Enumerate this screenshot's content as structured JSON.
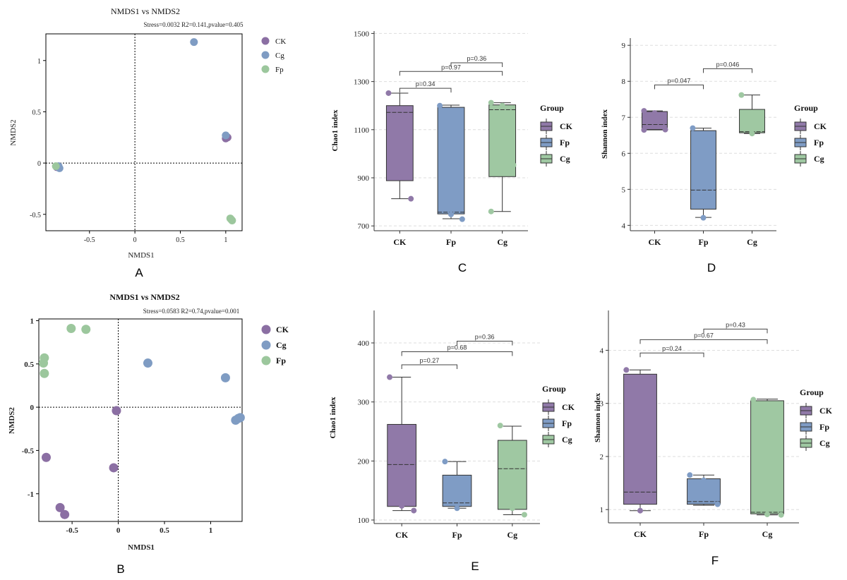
{
  "colors": {
    "CK": "#8b6fa3",
    "Cg": "#7f9cc3",
    "Fp": "#9cc79d",
    "CKbox": "#9079a8",
    "Fpbox": "#7f9cc5",
    "Cgbox": "#9fc8a2"
  },
  "chart_data": [
    {
      "type": "scatter",
      "panel": "A",
      "title": "NMDS1 vs NMDS2",
      "bold": false,
      "subtitle": "Stress=0.0032  R2=0.141,pvalue=0.405",
      "xlabel": "NMDS1",
      "ylabel": "NMDS2",
      "xlim": [
        -0.98,
        1.18
      ],
      "ylim": [
        -0.66,
        1.26
      ],
      "xticks": [
        -0.5,
        0,
        0.5,
        1
      ],
      "xticklabels": [
        "-0.5",
        "0",
        "0.5",
        "1"
      ],
      "yticks": [
        -0.5,
        0,
        0.5,
        1
      ],
      "yticklabels": [
        "-0.5",
        "0",
        "0.5",
        "1"
      ],
      "legend": [
        "CK",
        "Cg",
        "Fp"
      ],
      "series": [
        {
          "name": "CK",
          "points": [
            [
              1.0,
              0.24
            ],
            [
              1.02,
              0.25
            ],
            [
              -0.86,
              -0.04
            ],
            [
              -0.85,
              -0.035
            ]
          ]
        },
        {
          "name": "Cg",
          "points": [
            [
              0.65,
              1.18
            ],
            [
              1.0,
              0.27
            ],
            [
              -0.84,
              -0.03
            ],
            [
              -0.83,
              -0.05
            ]
          ]
        },
        {
          "name": "Fp",
          "points": [
            [
              1.05,
              -0.54
            ],
            [
              1.06,
              -0.55
            ],
            [
              1.07,
              -0.56
            ],
            [
              -0.87,
              -0.03
            ]
          ]
        }
      ]
    },
    {
      "type": "box",
      "panel": "C",
      "ylabel": "Chao1 index",
      "ylim": [
        680,
        1510
      ],
      "yticks": [
        700,
        900,
        1100,
        1300,
        1500
      ],
      "yticklabels": [
        "700",
        "900",
        "1100",
        "1300",
        "1500"
      ],
      "categories": [
        "CK",
        "Fp",
        "Cg"
      ],
      "legend_title": "Group",
      "legend": [
        "CK",
        "Fp",
        "Cg"
      ],
      "boxes": [
        {
          "name": "CK",
          "min": 813,
          "q1": 888,
          "median": 1172,
          "q3": 1200,
          "max": 1252,
          "points": [
            1252,
            905,
            813
          ]
        },
        {
          "name": "Fp",
          "min": 730,
          "q1": 750,
          "median": 757,
          "q3": 1193,
          "max": 1202,
          "points": [
            1200,
            748,
            728
          ]
        },
        {
          "name": "Cg",
          "min": 760,
          "q1": 905,
          "median": 1183,
          "q3": 1203,
          "max": 1212,
          "points": [
            1212,
            1200,
            953,
            760
          ]
        }
      ],
      "brackets": [
        {
          "label": "p=0.36",
          "from": 1,
          "to": 2,
          "y": 1378
        },
        {
          "label": "p=0.97",
          "from": 0,
          "to": 2,
          "y": 1342
        },
        {
          "label": "p=0.34",
          "from": 0,
          "to": 1,
          "y": 1272
        }
      ]
    },
    {
      "type": "box",
      "panel": "D",
      "ylabel": "Shannon index",
      "ylim": [
        3.85,
        9.2
      ],
      "yticks": [
        4,
        5,
        6,
        7,
        8,
        9
      ],
      "yticklabels": [
        "4",
        "5",
        "6",
        "7",
        "8",
        "9"
      ],
      "categories": [
        "CK",
        "Fp",
        "Cg"
      ],
      "legend_title": "Group",
      "legend": [
        "CK",
        "Fp",
        "Cg"
      ],
      "boxes": [
        {
          "name": "CK",
          "min": 6.65,
          "q1": 6.66,
          "median": 6.8,
          "q3": 7.16,
          "max": 7.18,
          "points": [
            7.18,
            7.12,
            6.66,
            6.65
          ]
        },
        {
          "name": "Fp",
          "min": 4.22,
          "q1": 4.45,
          "median": 4.98,
          "q3": 6.63,
          "max": 6.7,
          "points": [
            6.7,
            4.21
          ]
        },
        {
          "name": "Cg",
          "min": 6.55,
          "q1": 6.57,
          "median": 6.6,
          "q3": 7.22,
          "max": 7.62,
          "points": [
            7.62,
            6.55
          ]
        }
      ],
      "brackets": [
        {
          "label": "p=0.046",
          "from": 1,
          "to": 2,
          "y": 8.35
        },
        {
          "label": "p=0.047",
          "from": 0,
          "to": 1,
          "y": 7.9
        }
      ]
    },
    {
      "type": "scatter",
      "panel": "B",
      "title": "NMDS1 vs NMDS2",
      "bold": true,
      "subtitle": "Stress=0.0583    R2=0.74,pvalue=0.001",
      "xlabel": "NMDS1",
      "ylabel": "NMDS2",
      "xlim": [
        -0.86,
        1.34
      ],
      "ylim": [
        -1.32,
        1.02
      ],
      "xticks": [
        -0.5,
        0,
        0.5,
        1
      ],
      "xticklabels": [
        "-0.5",
        "0",
        "0.5",
        "1"
      ],
      "yticks": [
        -1,
        -0.5,
        0,
        0.5,
        1
      ],
      "yticklabels": [
        "-1",
        "-0.5",
        "0",
        "0.5",
        "1"
      ],
      "legend": [
        "CK",
        "Cg",
        "Fp"
      ],
      "series": [
        {
          "name": "CK",
          "points": [
            [
              -0.02,
              -0.04
            ],
            [
              -0.78,
              -0.58
            ],
            [
              -0.05,
              -0.7
            ],
            [
              -0.63,
              -1.16
            ],
            [
              -0.58,
              -1.24
            ]
          ]
        },
        {
          "name": "Cg",
          "points": [
            [
              0.32,
              0.51
            ],
            [
              1.16,
              0.34
            ],
            [
              1.27,
              -0.15
            ],
            [
              1.3,
              -0.13
            ],
            [
              1.32,
              -0.12
            ]
          ]
        },
        {
          "name": "Fp",
          "points": [
            [
              -0.51,
              0.91
            ],
            [
              -0.35,
              0.9
            ],
            [
              -0.8,
              0.57
            ],
            [
              -0.81,
              0.51
            ],
            [
              -0.8,
              0.39
            ]
          ]
        }
      ]
    },
    {
      "type": "box",
      "panel": "E",
      "ylabel": "Chao1 index",
      "ylim": [
        94,
        455
      ],
      "yticks": [
        100,
        200,
        300,
        400
      ],
      "yticklabels": [
        "100",
        "200",
        "300",
        "400"
      ],
      "categories": [
        "CK",
        "Fp",
        "Cg"
      ],
      "legend_title": "Group",
      "legend": [
        "CK",
        "Fp",
        "Cg"
      ],
      "boxes": [
        {
          "name": "CK",
          "min": 116,
          "q1": 123,
          "median": 194,
          "q3": 262,
          "max": 342,
          "points": [
            342,
            124,
            116
          ]
        },
        {
          "name": "Fp",
          "min": 120,
          "q1": 123,
          "median": 129,
          "q3": 176,
          "max": 199,
          "points": [
            199,
            120
          ]
        },
        {
          "name": "Cg",
          "min": 109,
          "q1": 118,
          "median": 187,
          "q3": 235,
          "max": 259,
          "points": [
            260,
            120,
            109
          ]
        }
      ],
      "brackets": [
        {
          "label": "p=0.36",
          "from": 1,
          "to": 2,
          "y": 403
        },
        {
          "label": "p=0.68",
          "from": 0,
          "to": 2,
          "y": 385
        },
        {
          "label": "p=0.27",
          "from": 0,
          "to": 1,
          "y": 363
        }
      ]
    },
    {
      "type": "box",
      "panel": "F",
      "ylabel": "Shannon index",
      "ylim": [
        0.75,
        4.75
      ],
      "yticks": [
        1,
        2,
        3,
        4
      ],
      "yticklabels": [
        "1",
        "2",
        "3",
        "4"
      ],
      "categories": [
        "CK",
        "Fp",
        "Cg"
      ],
      "legend_title": "Group",
      "legend": [
        "CK",
        "Fp",
        "Cg"
      ],
      "boxes": [
        {
          "name": "CK",
          "min": 0.98,
          "q1": 1.1,
          "median": 1.33,
          "q3": 3.55,
          "max": 3.63,
          "points": [
            3.63,
            0.98
          ]
        },
        {
          "name": "Fp",
          "min": 1.08,
          "q1": 1.1,
          "median": 1.15,
          "q3": 1.58,
          "max": 1.65,
          "points": [
            1.65,
            1.55,
            1.1
          ]
        },
        {
          "name": "Cg",
          "min": 0.9,
          "q1": 0.92,
          "median": 0.95,
          "q3": 3.05,
          "max": 3.08,
          "points": [
            3.07,
            0.91,
            0.9
          ]
        }
      ],
      "brackets": [
        {
          "label": "p=0.43",
          "from": 1,
          "to": 2,
          "y": 4.4
        },
        {
          "label": "p=0.67",
          "from": 0,
          "to": 2,
          "y": 4.2
        },
        {
          "label": "p=0.24",
          "from": 0,
          "to": 1,
          "y": 3.95
        }
      ]
    }
  ],
  "panel_labels": {
    "A": "A",
    "B": "B",
    "C": "C",
    "D": "D",
    "E": "E",
    "F": "F"
  }
}
